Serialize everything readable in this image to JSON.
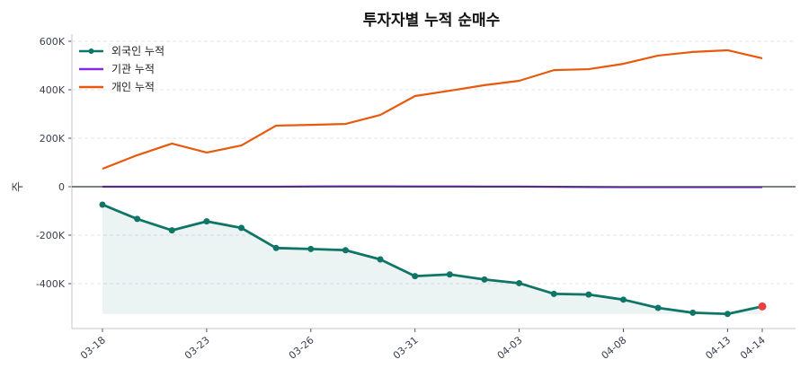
{
  "chart_data": {
    "type": "line",
    "title": "투자자별 누적 순매수",
    "ylabel": "주",
    "xlabel": "",
    "ylim": [
      -570000,
      610000
    ],
    "yticks": [
      600000,
      400000,
      200000,
      0,
      -200000,
      -400000
    ],
    "ytick_labels": [
      "600K",
      "400K",
      "200K",
      "0",
      "-200K",
      "-400K"
    ],
    "x": [
      "03-18",
      "03-19",
      "03-20",
      "03-23",
      "03-24",
      "03-25",
      "03-26",
      "03-27",
      "03-30",
      "03-31",
      "04-01",
      "04-02",
      "04-03",
      "04-06",
      "04-07",
      "04-08",
      "04-09",
      "04-10",
      "04-13",
      "04-14"
    ],
    "xtick_labels": [
      "03-18",
      "03-23",
      "03-26",
      "03-31",
      "04-03",
      "04-08",
      "04-13",
      "04-14"
    ],
    "grid": "y-dashed",
    "legend_position": "top-left",
    "series": [
      {
        "name": "외국인 누적",
        "color": "#0f7566",
        "markers": true,
        "fill": true,
        "last_point_color": "#e84040",
        "values": [
          -74000,
          -133000,
          -180000,
          -143000,
          -170000,
          -253000,
          -257000,
          -262000,
          -300000,
          -369000,
          -362000,
          -383000,
          -398000,
          -442000,
          -445000,
          -466000,
          -500000,
          -520000,
          -525000,
          -494000
        ]
      },
      {
        "name": "기관 누적",
        "color": "#8a2be2",
        "markers": false,
        "values": [
          0,
          0,
          0,
          0,
          0,
          0,
          1000,
          1500,
          1500,
          1000,
          1000,
          500,
          500,
          -500,
          -1500,
          -2000,
          -2000,
          -2000,
          -2000,
          -2000
        ]
      },
      {
        "name": "개인 누적",
        "color": "#e8590c",
        "markers": false,
        "values": [
          74000,
          130000,
          178000,
          141000,
          170000,
          252000,
          255000,
          259000,
          296000,
          374000,
          396000,
          419000,
          437000,
          481000,
          485000,
          507000,
          541000,
          556000,
          563000,
          530000
        ]
      }
    ]
  }
}
